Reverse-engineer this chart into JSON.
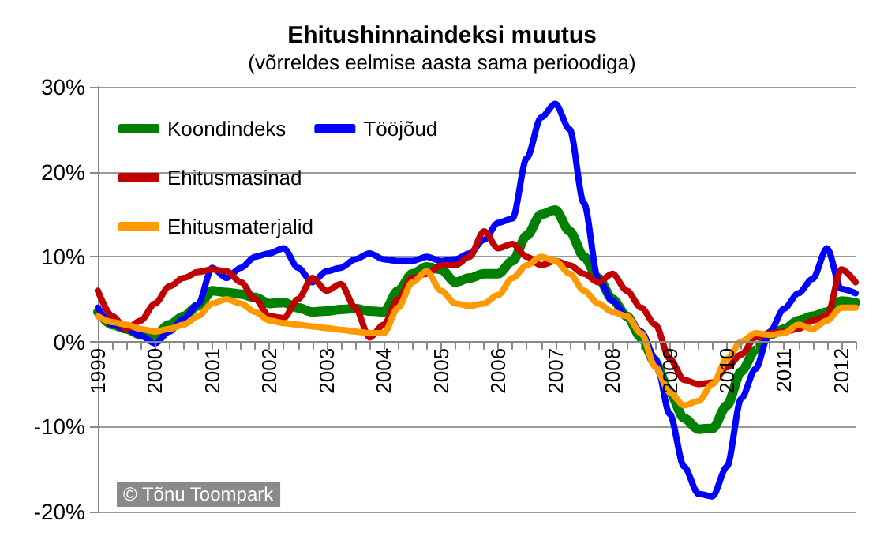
{
  "chart_data": {
    "type": "line",
    "title": "Ehitushinnaindeksi muutus",
    "subtitle": "(võrreldes eelmise aasta sama perioodiga)",
    "categories": [
      "1999",
      null,
      null,
      null,
      "2000",
      null,
      null,
      null,
      "2001",
      null,
      null,
      null,
      "2002",
      null,
      null,
      null,
      "2003",
      null,
      null,
      null,
      "2004",
      null,
      null,
      null,
      "2005",
      null,
      null,
      null,
      "2006",
      null,
      null,
      null,
      "2007",
      null,
      null,
      null,
      "2008",
      null,
      null,
      null,
      "2009",
      null,
      null,
      null,
      "2010",
      null,
      null,
      null,
      "2011",
      null,
      null,
      null,
      "2012",
      null
    ],
    "series": [
      {
        "name": "Koondindeks",
        "color": "#008000",
        "values": [
          3.5,
          2,
          1.5,
          0.8,
          0.8,
          2,
          3,
          4.2,
          6,
          5.8,
          5.6,
          5.2,
          4.5,
          4.6,
          4,
          3.5,
          3.6,
          3.8,
          3.9,
          3.6,
          3.5,
          6,
          8,
          8.8,
          8.5,
          7,
          7.5,
          8,
          8,
          9.5,
          12.5,
          15,
          15.5,
          13,
          10,
          7.5,
          5,
          3,
          0.5,
          -2.5,
          -6,
          -9,
          -10.3,
          -10.2,
          -7.5,
          -3.5,
          -1,
          0.8,
          1.5,
          2.5,
          3,
          3.5,
          4.8,
          4.6
        ]
      },
      {
        "name": "Tööjõud",
        "color": "#0000ff",
        "values": [
          4,
          2,
          1.5,
          0.7,
          -0.2,
          1.2,
          2.7,
          4.4,
          8.7,
          7.5,
          8.7,
          10,
          10.4,
          11,
          8.7,
          7,
          8.3,
          8.7,
          9.7,
          10.4,
          9.7,
          9.5,
          9.5,
          10,
          9.5,
          9.7,
          10.4,
          12,
          14,
          14.5,
          21.6,
          26.4,
          28,
          25,
          16.3,
          7.4,
          4.8,
          3,
          1.2,
          -2,
          -8.5,
          -14.7,
          -17.9,
          -18.2,
          -14.7,
          -6.7,
          -3.2,
          1.2,
          3.9,
          5.7,
          7.4,
          11,
          6.2,
          5.7
        ]
      },
      {
        "name": "Ehitusmasinad",
        "color": "#c00000",
        "values": [
          6,
          3,
          1.5,
          2.5,
          4.5,
          6.5,
          7.5,
          8.2,
          8.5,
          8.3,
          7,
          5,
          3,
          2.8,
          5,
          7.5,
          6,
          6.8,
          4,
          0.5,
          2,
          5,
          7.5,
          8,
          9,
          9,
          10,
          13,
          11,
          11.5,
          10,
          9,
          9.5,
          9,
          8,
          7,
          8,
          6,
          4,
          2,
          -2,
          -4.5,
          -5,
          -4.8,
          -3,
          -1.5,
          0.5,
          1,
          1.2,
          1.5,
          2.5,
          3,
          8.5,
          7
        ]
      },
      {
        "name": "Ehitusmaterjalid",
        "color": "#ff9900",
        "values": [
          3,
          2.3,
          2,
          1.5,
          1.2,
          1.5,
          2,
          3,
          4.5,
          5,
          4.5,
          3.5,
          2.5,
          2.2,
          2,
          1.8,
          1.6,
          1.4,
          1.2,
          1,
          1,
          4,
          7,
          8.3,
          6,
          4.5,
          4.2,
          4.5,
          5.5,
          7.5,
          9,
          10,
          9.5,
          8,
          6,
          4.5,
          3.5,
          3,
          1,
          -3,
          -6,
          -7.5,
          -7,
          -5,
          -2,
          0,
          1,
          0.8,
          1,
          2,
          1.5,
          2.5,
          4,
          4
        ]
      }
    ],
    "ylim": [
      -20,
      30
    ],
    "yticks": [
      {
        "value": -20,
        "label": "-20%"
      },
      {
        "value": -10,
        "label": "-10%"
      },
      {
        "value": 0,
        "label": "0%"
      },
      {
        "value": 10,
        "label": "10%"
      },
      {
        "value": 20,
        "label": "20%"
      },
      {
        "value": 30,
        "label": "30%"
      }
    ],
    "grid": "y",
    "legend": "top left",
    "marker": "none",
    "line_style": "solid",
    "annotations": [
      "© Tõnu Toompark"
    ]
  }
}
